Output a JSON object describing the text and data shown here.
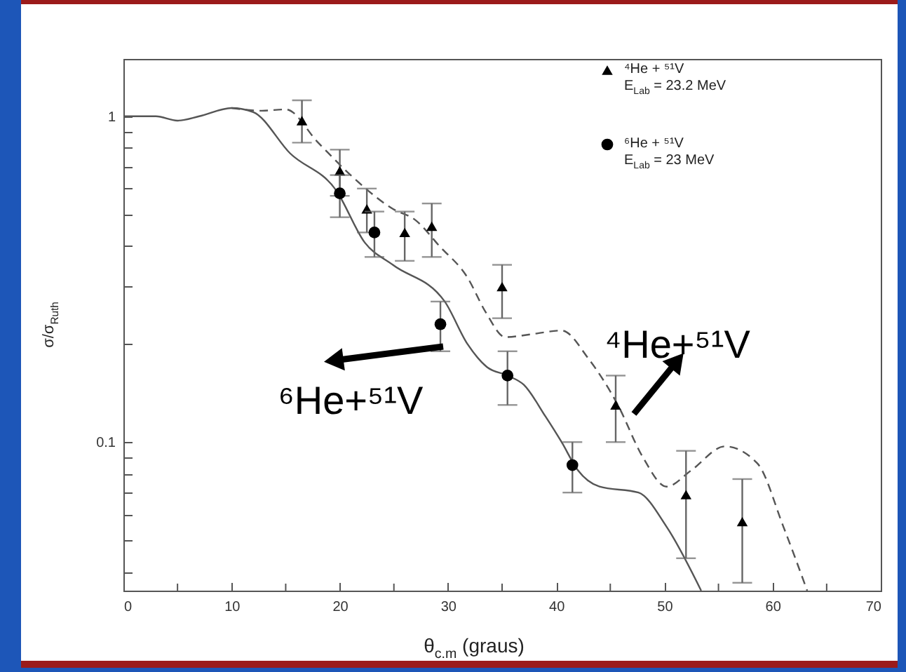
{
  "chart_data": {
    "type": "scatter",
    "xlabel": "θ$_{c.m}$ (graus)",
    "ylabel": "σ/σ$_{Ruth}$",
    "xlim": [
      0,
      70
    ],
    "xticks": [
      0,
      {
        "value": 5,
        "label": null
      },
      10,
      {
        "value": 15,
        "label": null
      },
      20,
      {
        "value": 25,
        "label": null
      },
      30,
      {
        "value": 35,
        "label": null
      },
      40,
      {
        "value": 45,
        "label": null
      },
      50,
      {
        "value": 55,
        "label": null
      },
      60,
      {
        "value": 65,
        "label": null
      },
      70
    ],
    "ylim": [
      0.035,
      1.5
    ],
    "log": true,
    "yticks": [
      {
        "value": 0.04,
        "label": null
      },
      {
        "value": 0.05,
        "label": null
      },
      {
        "value": 0.06,
        "label": null
      },
      {
        "value": 0.07,
        "label": null
      },
      {
        "value": 0.08,
        "label": null
      },
      {
        "value": 0.09,
        "label": null
      },
      0.1,
      {
        "value": 0.2,
        "label": null
      },
      {
        "value": 0.3,
        "label": null
      },
      {
        "value": 0.4,
        "label": null
      },
      {
        "value": 0.5,
        "label": null
      },
      {
        "value": 0.6,
        "label": null
      },
      {
        "value": 0.7,
        "label": null
      },
      {
        "value": 0.8,
        "label": null
      },
      {
        "value": 0.9,
        "label": null
      },
      1
    ],
    "grid": false,
    "legend": "top right",
    "series": [
      {
        "type": "line",
        "line_style": "solid",
        "color": "#555555",
        "x": [
          0,
          3,
          5,
          7,
          10,
          12,
          15.4,
          19.7,
          22.3,
          24.9,
          29.7,
          31.8,
          33.6,
          35.5,
          37,
          39,
          40.5,
          42,
          44,
          47.6,
          50.2,
          53.4
        ],
        "values": [
          1.0,
          1.0,
          0.97,
          1.0,
          1.06,
          1.03,
          0.77,
          0.59,
          0.41,
          0.35,
          0.27,
          0.2,
          0.17,
          0.16,
          0.15,
          0.12,
          0.1,
          0.082,
          0.073,
          0.07,
          0.055,
          0.035
        ]
      },
      {
        "type": "line",
        "line_style": "dashed",
        "color": "#555555",
        "x": [
          10,
          12.8,
          15,
          18,
          21,
          24.9,
          27,
          29.2,
          31.8,
          33.5,
          35.3,
          38,
          40.5,
          43,
          45.7,
          48,
          50.2,
          52.5,
          55.6,
          58.6,
          61,
          63.2
        ],
        "values": [
          1.06,
          1.04,
          1.05,
          0.83,
          0.66,
          0.52,
          0.48,
          0.4,
          0.32,
          0.25,
          0.21,
          0.215,
          0.22,
          0.18,
          0.13,
          0.09,
          0.073,
          0.082,
          0.097,
          0.086,
          0.055,
          0.035
        ]
      },
      {
        "marker": "triangle",
        "name": "⁴He + ⁵¹V\nE$_{Lab}$ = 23.2 MeV",
        "color": "#000000",
        "x": [
          16.5,
          20,
          22.5,
          26,
          28.5,
          35,
          45.5,
          52,
          57.2
        ],
        "values": [
          0.97,
          0.68,
          0.52,
          0.44,
          0.46,
          0.3,
          0.13,
          0.069,
          0.057
        ],
        "errors": [
          [
            0.83,
            1.12
          ],
          [
            0.57,
            0.79
          ],
          [
            0.44,
            0.6
          ],
          [
            0.36,
            0.51
          ],
          [
            0.37,
            0.54
          ],
          [
            0.24,
            0.35
          ],
          [
            0.1,
            0.16
          ],
          [
            0.044,
            0.094
          ],
          [
            0.037,
            0.077
          ]
        ]
      },
      {
        "marker": "circle",
        "name": "⁶He + ⁵¹V\nE$_{Lab}$ = 23 MeV",
        "color": "#000000",
        "x": [
          20,
          23.2,
          29.3,
          35.5,
          41.5
        ],
        "values": [
          0.58,
          0.44,
          0.23,
          0.16,
          0.085
        ],
        "errors": [
          [
            0.49,
            0.66
          ],
          [
            0.37,
            0.51
          ],
          [
            0.19,
            0.27
          ],
          [
            0.13,
            0.19
          ],
          [
            0.07,
            0.1
          ]
        ]
      }
    ],
    "annotations": [
      "⁶He+⁵¹V",
      "⁴He+⁵¹V"
    ]
  }
}
